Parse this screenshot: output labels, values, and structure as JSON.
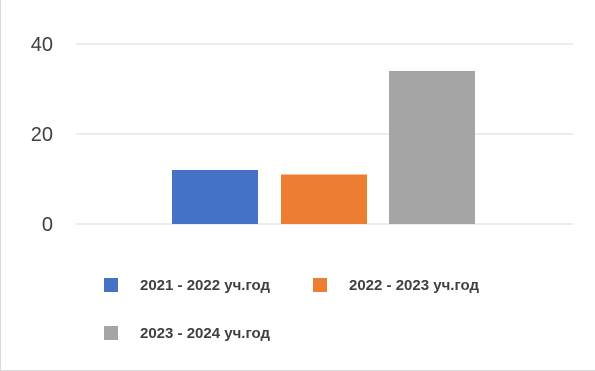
{
  "chart_data": {
    "type": "bar",
    "categories": [
      ""
    ],
    "series": [
      {
        "name": "2021 - 2022 уч.год",
        "values": [
          12
        ],
        "color": "#4472C4"
      },
      {
        "name": "2022 - 2023 уч.год",
        "values": [
          11
        ],
        "color": "#ED7D31"
      },
      {
        "name": "2023 - 2024 уч.год",
        "values": [
          34
        ],
        "color": "#A5A5A5"
      }
    ],
    "y_ticks": [
      "0",
      "20",
      "40"
    ],
    "ylim": [
      0,
      40
    ],
    "grid": true,
    "legend": "bottom"
  }
}
